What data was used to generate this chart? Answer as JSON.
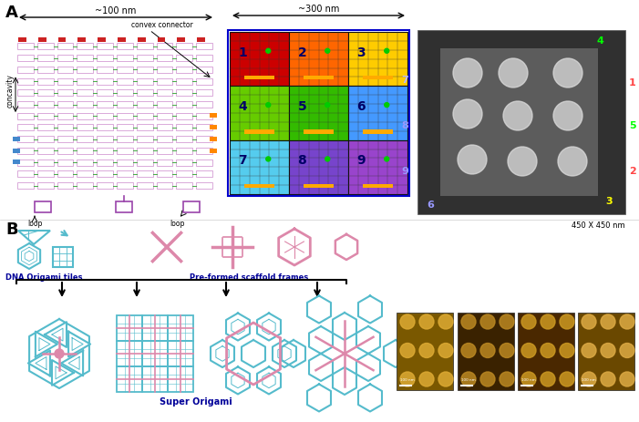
{
  "title_A": "A",
  "title_B": "B",
  "fig_bg": "#ffffff",
  "label_100nm": "~100 nm",
  "label_300nm": "~300 nm",
  "label_450nm": "450 X 450 nm",
  "label_concavity": "concavity",
  "label_convex": "convex connector",
  "label_loop1": "loop",
  "label_loop2": "loop",
  "label_dna_tiles": "DNA Origami tiles",
  "label_scaffold": "Pre-formed scaffold frames",
  "label_super": "Super Origami",
  "grid_colors_3x3": [
    [
      "#cc0000",
      "#ff6600",
      "#ffcc00"
    ],
    [
      "#66cc00",
      "#33bb00",
      "#4499ff"
    ],
    [
      "#55ccee",
      "#7744cc",
      "#9944cc"
    ]
  ],
  "grid_numbers": [
    [
      "1",
      "2",
      "3"
    ],
    [
      "4",
      "5",
      "6"
    ],
    [
      "7",
      "8",
      "9"
    ]
  ],
  "tile_color": "#55bbcc",
  "scaffold_color": "#dd88aa",
  "super_color1": "#55bbcc",
  "super_color2": "#dd88aa"
}
